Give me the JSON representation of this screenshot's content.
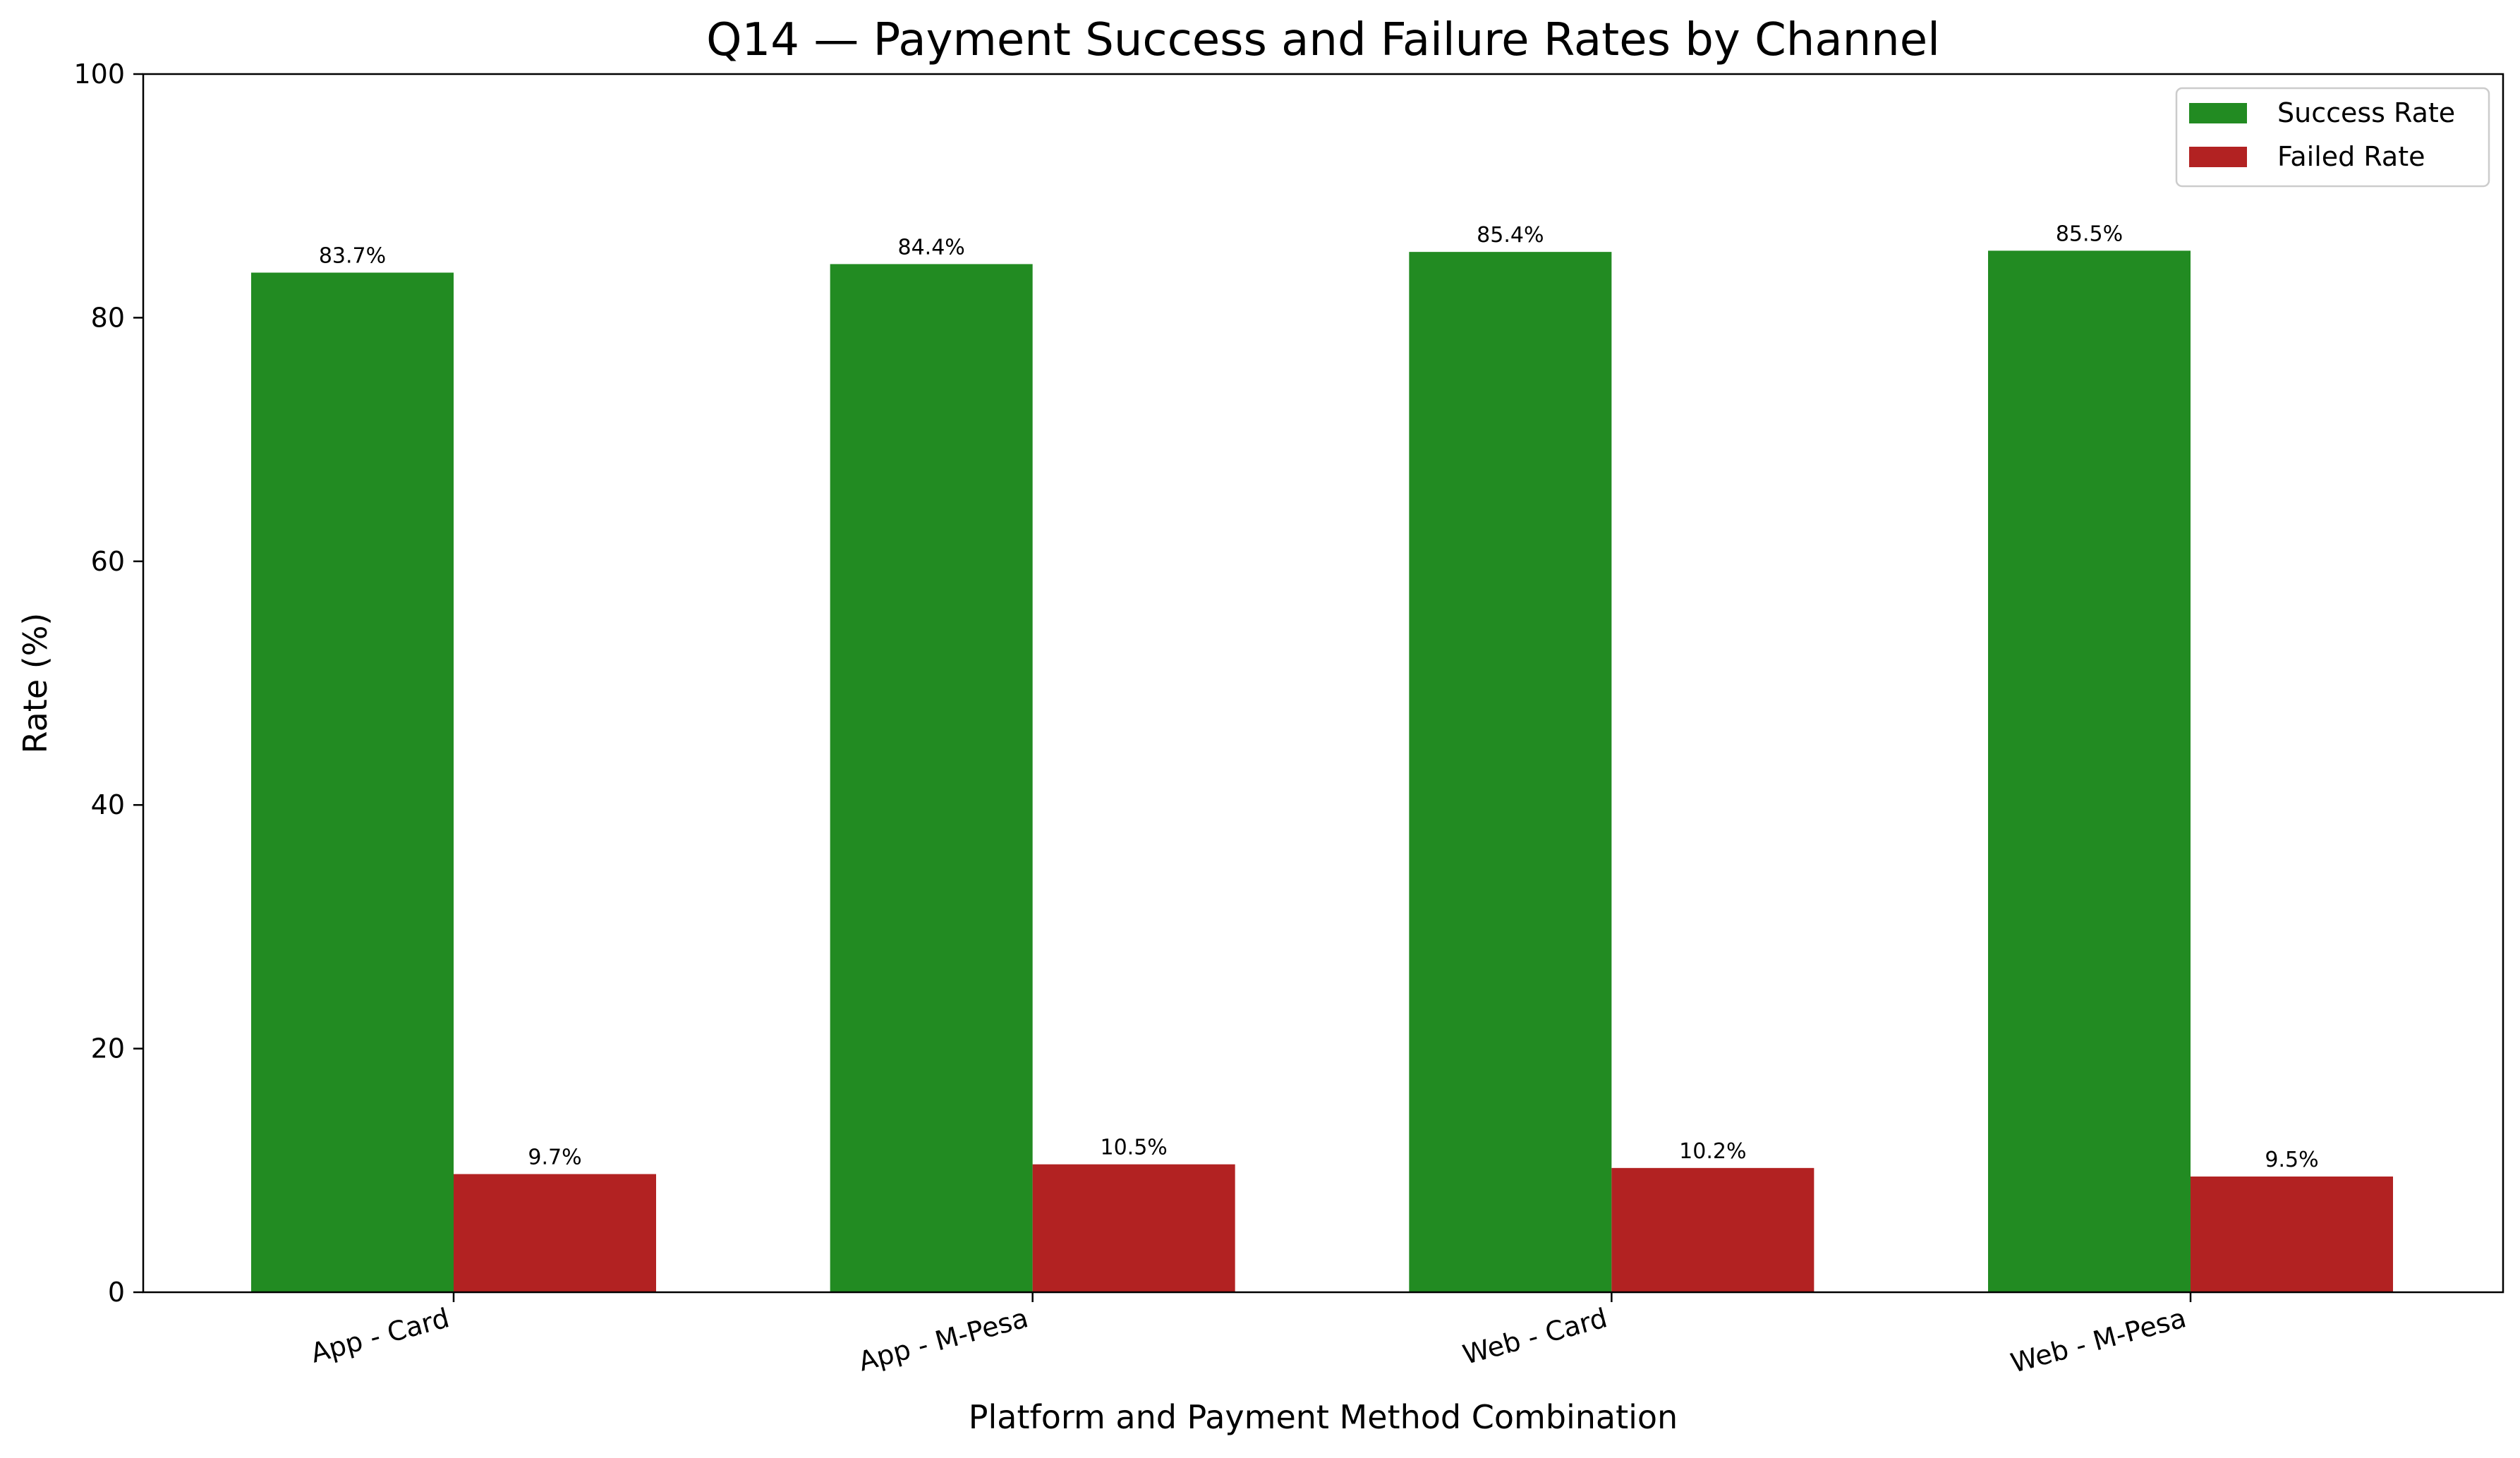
{
  "chart_data": {
    "type": "bar",
    "title": "Q14 — Payment Success and Failure Rates by Channel",
    "xlabel": "Platform and Payment Method Combination",
    "ylabel": "Rate (%)",
    "ylim": [
      0,
      100
    ],
    "yticks": [
      0,
      20,
      40,
      60,
      80,
      100
    ],
    "categories": [
      "App - Card",
      "App - M-Pesa",
      "Web - Card",
      "Web - M-Pesa"
    ],
    "series": [
      {
        "name": "Success Rate",
        "color": "#228b22",
        "values": [
          83.7,
          84.4,
          85.4,
          85.5
        ],
        "labels": [
          "83.7%",
          "84.4%",
          "85.4%",
          "85.5%"
        ]
      },
      {
        "name": "Failed Rate",
        "color": "#b22222",
        "values": [
          9.7,
          10.5,
          10.2,
          9.5
        ],
        "labels": [
          "9.7%",
          "10.5%",
          "10.2%",
          "9.5%"
        ]
      }
    ],
    "legend_position": "top-right",
    "grid": false
  }
}
